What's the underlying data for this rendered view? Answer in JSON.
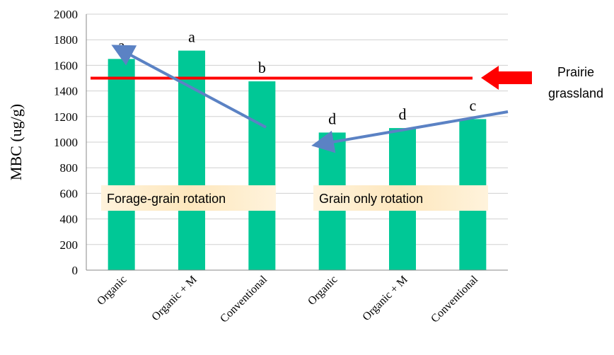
{
  "chart_data": {
    "type": "bar",
    "y_label": "MBC (ug/g)",
    "categories": [
      "Organic",
      "Organic + M",
      "Conventional",
      "Organic",
      "Organic + M",
      "Conventional"
    ],
    "values": [
      1650,
      1715,
      1475,
      1075,
      1110,
      1180
    ],
    "letters": [
      "a",
      "a",
      "b",
      "d",
      "d",
      "c"
    ],
    "color": "#00c896",
    "ylim": [
      0,
      2000
    ],
    "yticks": [
      0,
      200,
      400,
      600,
      800,
      1000,
      1200,
      1400,
      1600,
      1800,
      2000
    ],
    "grid": true,
    "reference_line": {
      "value": 1500,
      "color": "#ff0000",
      "label_lines": [
        "Prairie",
        "grassland"
      ]
    },
    "group_labels": [
      "Forage-grain rotation",
      "Grain only rotation"
    ]
  }
}
